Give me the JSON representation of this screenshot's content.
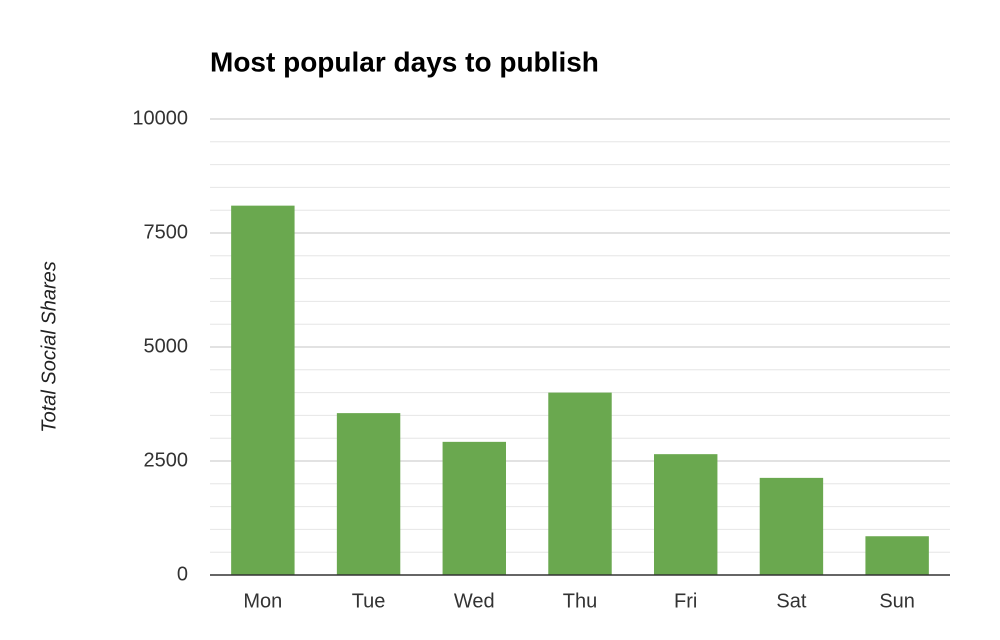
{
  "chart_data": {
    "type": "bar",
    "title": "Most popular days to publish",
    "y_label": "Total Social Shares",
    "categories": [
      "Mon",
      "Tue",
      "Wed",
      "Thu",
      "Fri",
      "Sat",
      "Sun"
    ],
    "values": [
      8100,
      3550,
      2920,
      4000,
      2650,
      2130,
      850
    ],
    "color": "#6aa84f",
    "ylim": [
      0,
      10000
    ],
    "yticks": [
      0,
      2500,
      5000,
      7500,
      10000
    ],
    "grid": true
  }
}
